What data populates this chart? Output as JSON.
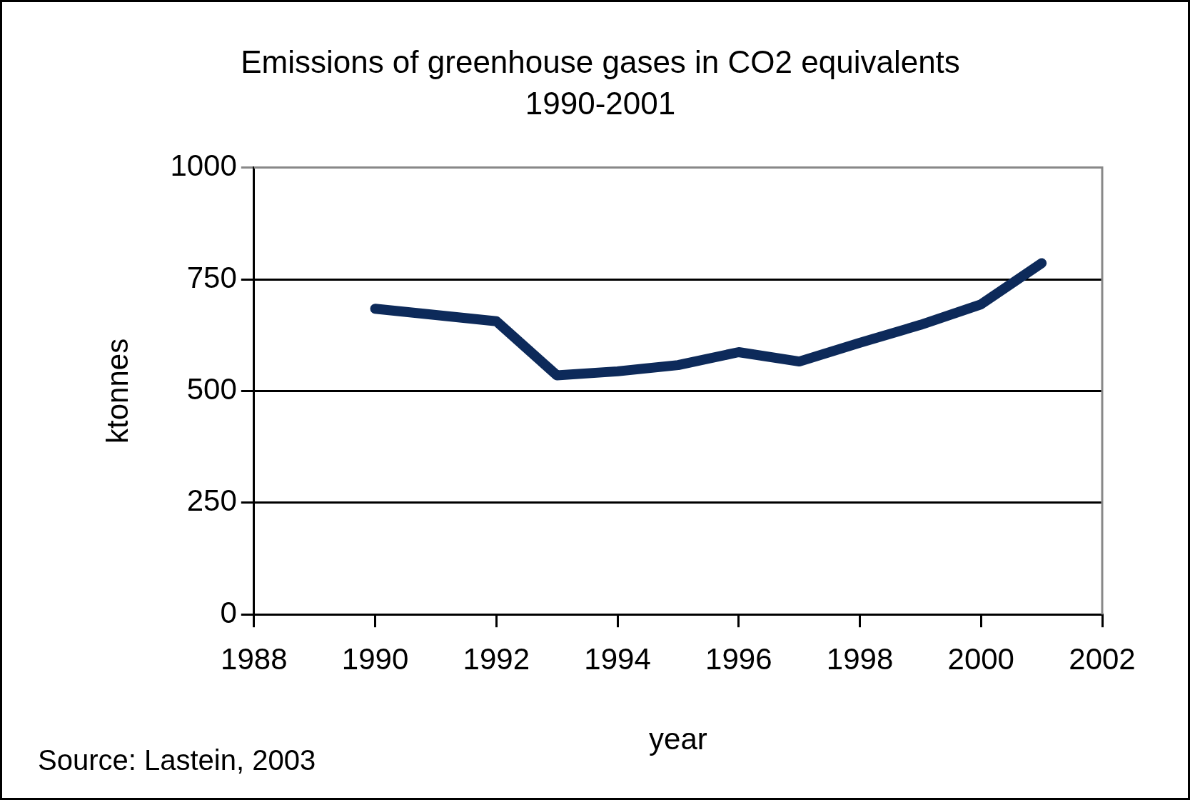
{
  "chart_data": {
    "type": "line",
    "title": "Emissions of greenhouse gases in CO2 equivalents",
    "subtitle": "1990-2001",
    "xlabel": "year",
    "ylabel": "ktonnes",
    "annotations": [
      "Source: Lastein, 2003"
    ],
    "x": [
      1990,
      1991,
      1992,
      1993,
      1994,
      1995,
      1996,
      1997,
      1998,
      1999,
      2000,
      2001
    ],
    "series": [
      {
        "color": "#0d2a5a",
        "values": [
          684,
          670,
          656,
          535,
          544,
          558,
          587,
          566,
          608,
          648,
          694,
          786
        ]
      }
    ],
    "xlim": [
      1988,
      2002
    ],
    "xticks": [
      1988,
      1990,
      1992,
      1994,
      1996,
      1998,
      2000,
      2002
    ],
    "ylim": [
      0,
      1000
    ],
    "yticks": [
      0,
      250,
      500,
      750,
      1000
    ],
    "grid": "y",
    "legend": false,
    "marker": "none",
    "line_style": "solid"
  }
}
